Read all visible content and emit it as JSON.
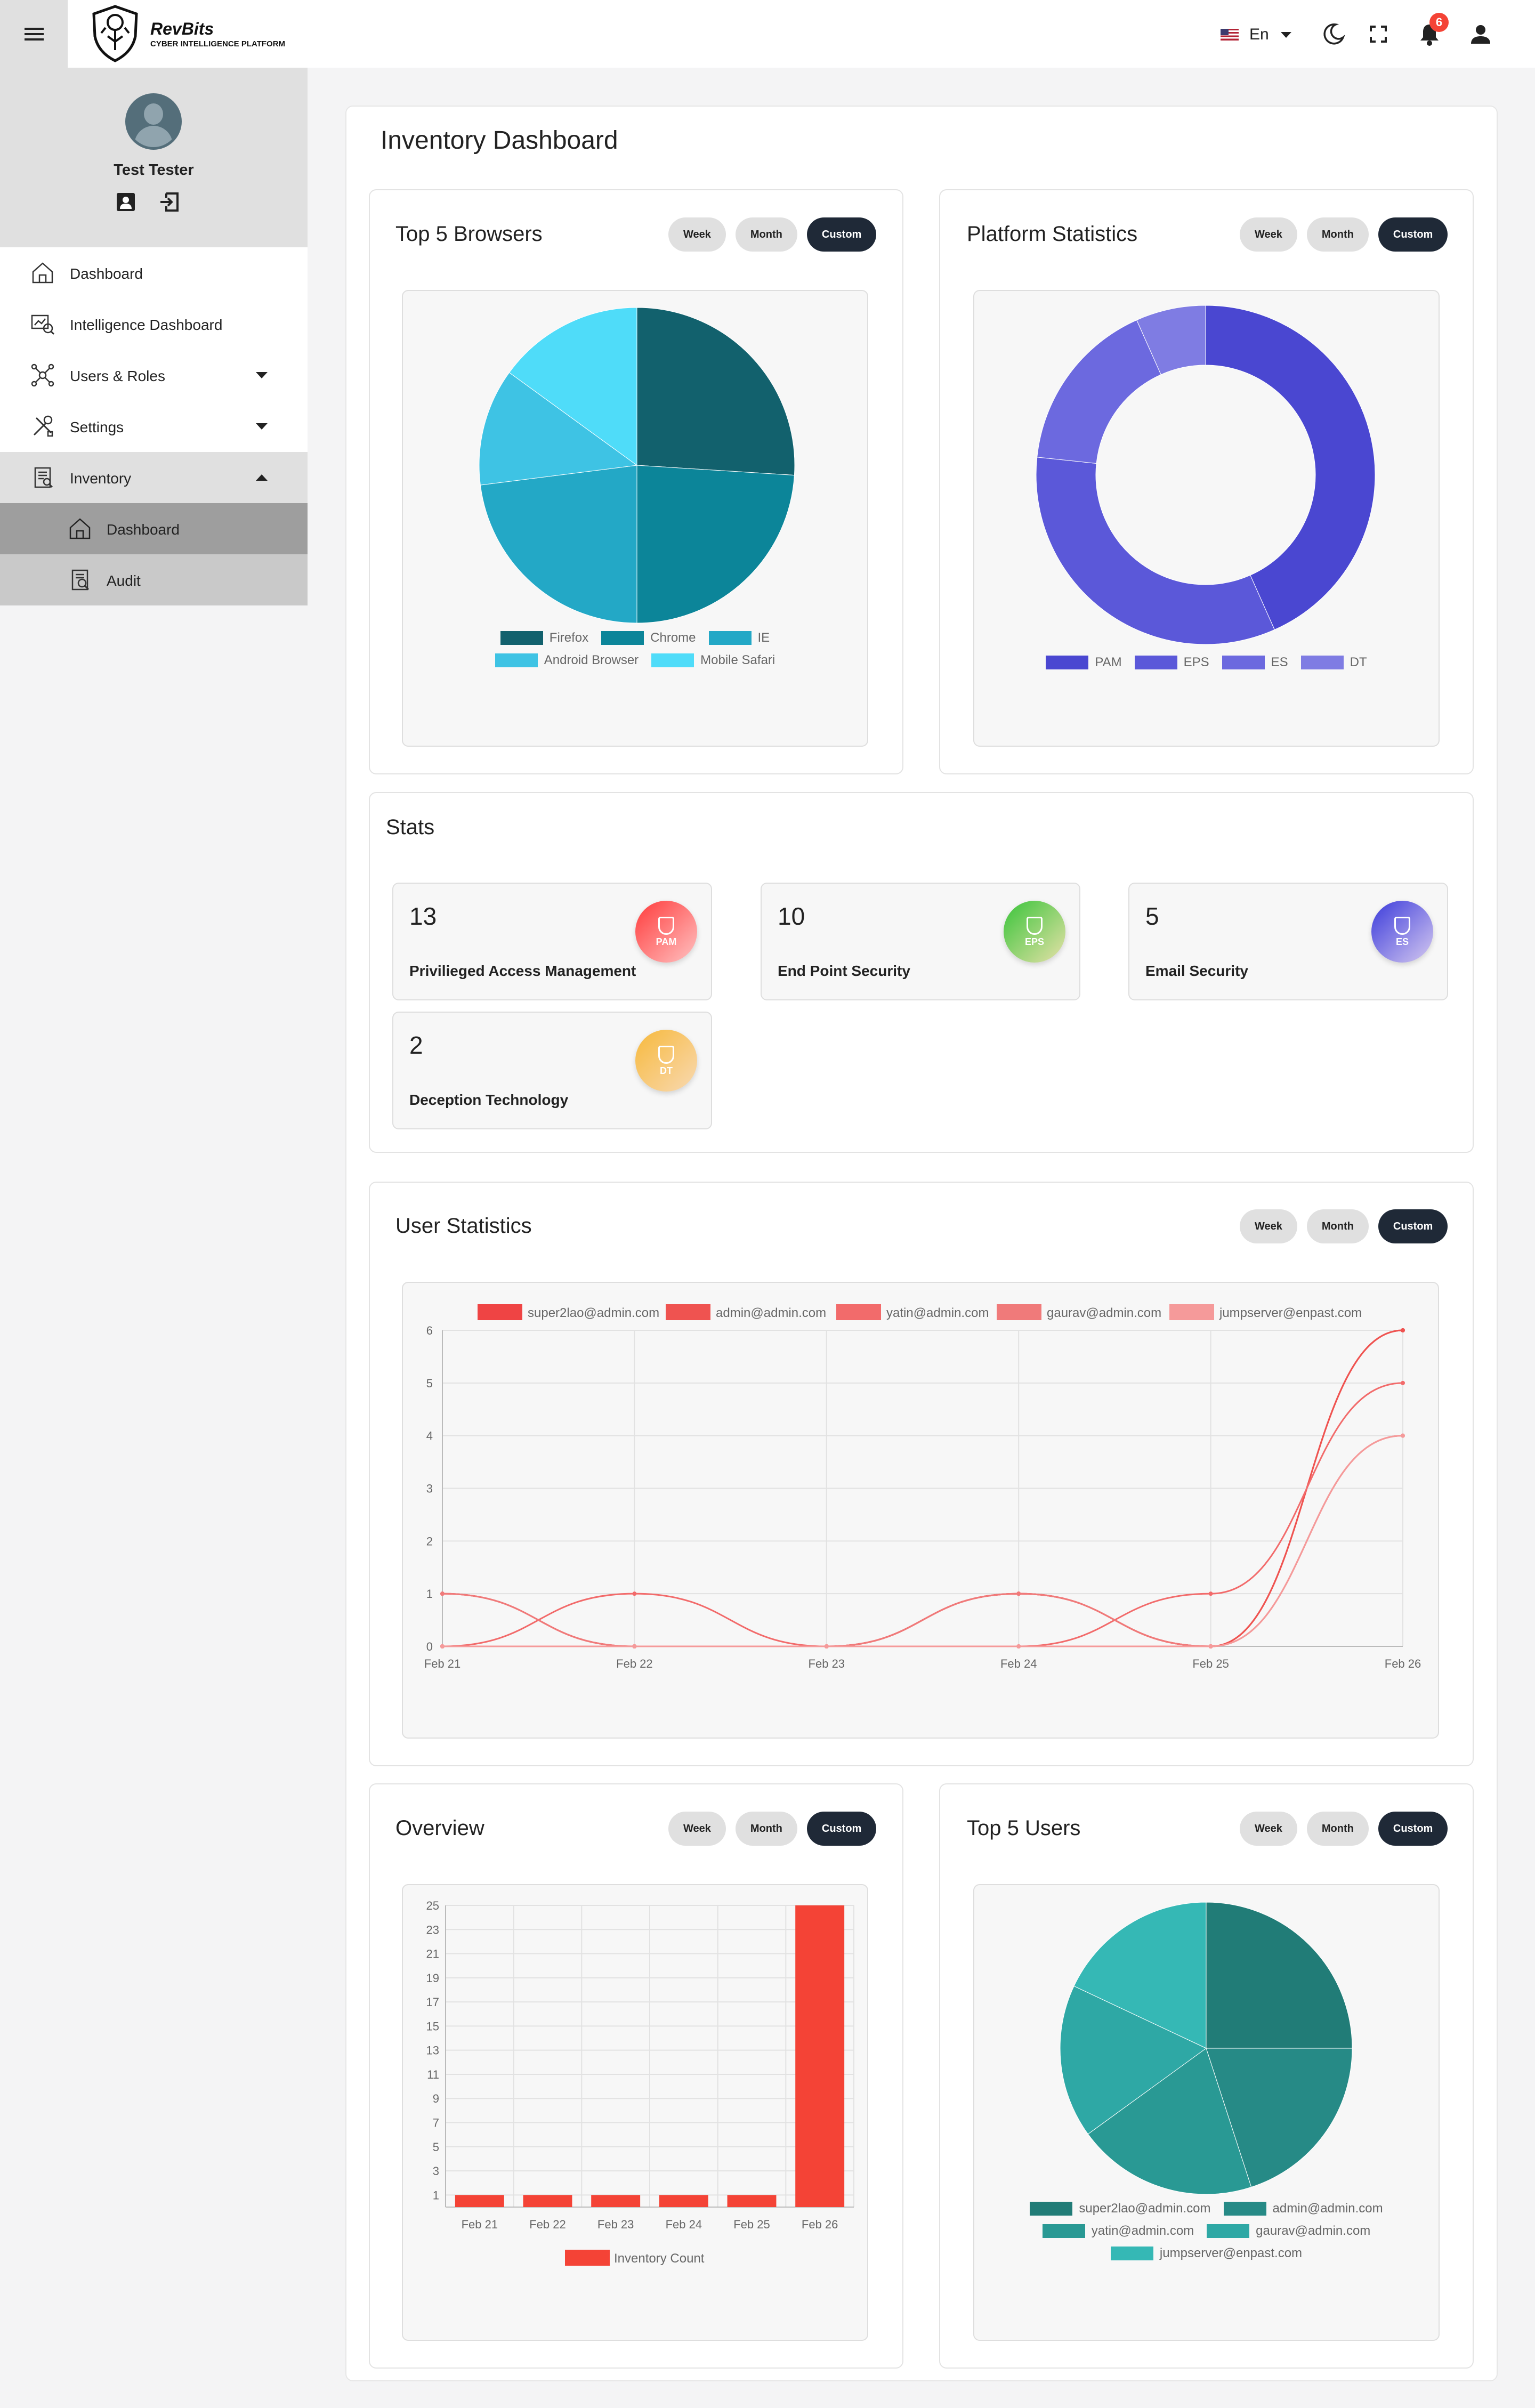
{
  "topbar": {
    "brand": "RevBits",
    "brand_sub": "CYBER INTELLIGENCE PLATFORM",
    "language": "En",
    "notification_count": "6"
  },
  "sidebar": {
    "user_name": "Test Tester",
    "items": [
      {
        "label": "Dashboard",
        "icon": "home-icon"
      },
      {
        "label": "Intelligence Dashboard",
        "icon": "intelligence-icon"
      },
      {
        "label": "Users & Roles",
        "icon": "network-icon"
      },
      {
        "label": "Settings",
        "icon": "tools-icon"
      },
      {
        "label": "Inventory",
        "icon": "inventory-icon"
      },
      {
        "label": "Dashboard",
        "icon": "home-icon"
      },
      {
        "label": "Audit",
        "icon": "audit-icon"
      }
    ]
  },
  "page": {
    "title": "Inventory Dashboard"
  },
  "filters": {
    "week": "Week",
    "month": "Month",
    "custom": "Custom"
  },
  "browsers": {
    "title": "Top 5 Browsers",
    "chart_data": {
      "type": "pie",
      "labels": [
        "Firefox",
        "Chrome",
        "IE",
        "Android Browser",
        "Mobile Safari"
      ],
      "values": [
        26,
        24,
        23,
        12,
        15
      ],
      "colors": [
        "#12616d",
        "#0c8599",
        "#23a8c6",
        "#3ec3e4",
        "#4fdcf9"
      ]
    }
  },
  "platform": {
    "title": "Platform Statistics",
    "chart_data": {
      "type": "pie",
      "labels": [
        "PAM",
        "EPS",
        "ES",
        "DT"
      ],
      "values": [
        13,
        10,
        5,
        2
      ],
      "colors": [
        "#4a47d1",
        "#5b58d9",
        "#6c69df",
        "#7f7ce3"
      ]
    }
  },
  "stats": {
    "title": "Stats",
    "cards": [
      {
        "value": "13",
        "label": "Privilieged Access Management",
        "abbr": "PAM",
        "c1": "#ff3b3b",
        "c2": "#ffc2c2"
      },
      {
        "value": "10",
        "label": "End Point Security",
        "abbr": "EPS",
        "c1": "#39c43a",
        "c2": "#e6e1a8"
      },
      {
        "value": "5",
        "label": "Email Security",
        "abbr": "ES",
        "c1": "#3b3bdb",
        "c2": "#d5c9f0"
      },
      {
        "value": "2",
        "label": "Deception Technology",
        "abbr": "DT",
        "c1": "#f7b93c",
        "c2": "#f8d9b2"
      }
    ]
  },
  "user_stats": {
    "title": "User Statistics",
    "chart_data": {
      "type": "line",
      "x": [
        "Feb 21",
        "Feb 22",
        "Feb 23",
        "Feb 24",
        "Feb 25",
        "Feb 26"
      ],
      "ylim": [
        0,
        6
      ],
      "yticks": [
        0,
        1,
        2,
        3,
        4,
        5,
        6
      ],
      "series": [
        {
          "name": "super2lao@admin.com",
          "color": "#ef4444",
          "values": [
            1,
            0,
            0,
            1,
            0,
            6
          ]
        },
        {
          "name": "admin@admin.com",
          "color": "#ef5350",
          "values": [
            0,
            0,
            0,
            1,
            0,
            6
          ]
        },
        {
          "name": "yatin@admin.com",
          "color": "#f26b6b",
          "values": [
            0,
            1,
            0,
            0,
            1,
            5
          ]
        },
        {
          "name": "gaurav@admin.com",
          "color": "#f07a7a",
          "values": [
            1,
            0,
            0,
            1,
            0,
            4
          ]
        },
        {
          "name": "jumpserver@enpast.com",
          "color": "#f59a9a",
          "values": [
            0,
            0,
            0,
            0,
            0,
            4
          ]
        }
      ]
    }
  },
  "overview": {
    "title": "Overview",
    "chart_data": {
      "type": "bar",
      "categories": [
        "Feb 21",
        "Feb 22",
        "Feb 23",
        "Feb 24",
        "Feb 25",
        "Feb 26"
      ],
      "series": [
        {
          "name": "Inventory Count",
          "color": "#f44336",
          "values": [
            1,
            1,
            1,
            1,
            1,
            25
          ]
        }
      ],
      "ylim": [
        0,
        25
      ],
      "yticks": [
        1,
        3,
        5,
        7,
        9,
        11,
        13,
        15,
        17,
        19,
        21,
        23,
        25
      ]
    }
  },
  "top_users": {
    "title": "Top 5 Users",
    "chart_data": {
      "type": "pie",
      "labels": [
        "super2lao@admin.com",
        "admin@admin.com",
        "yatin@admin.com",
        "gaurav@admin.com",
        "jumpserver@enpast.com"
      ],
      "values": [
        25,
        20,
        20,
        17,
        18
      ],
      "colors": [
        "#217c77",
        "#268a86",
        "#299994",
        "#2ea8a5",
        "#35b8b5"
      ]
    }
  }
}
